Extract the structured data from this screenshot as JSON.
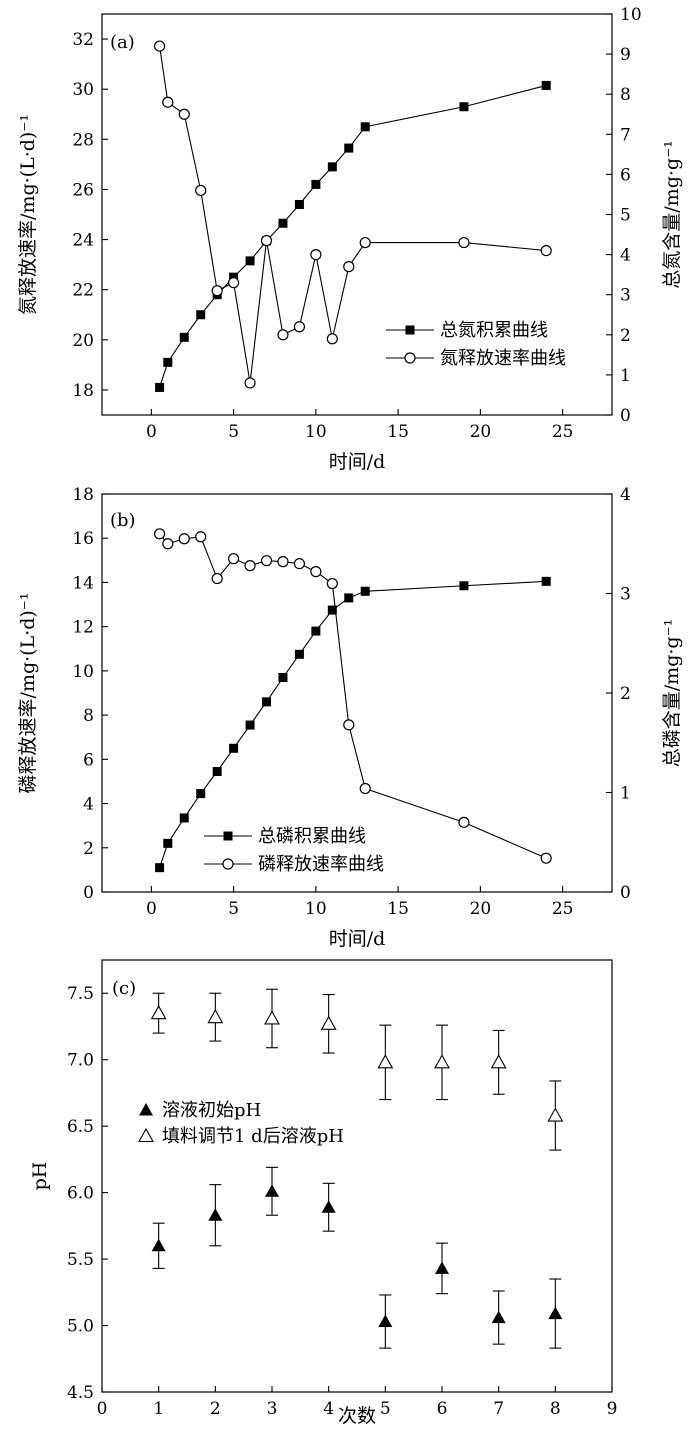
{
  "chart_data": [
    {
      "type": "line",
      "panel_label": "(a)",
      "xlabel": "时间/d",
      "ylabel_left": "氮释放速率/mg·(L·d)⁻¹",
      "ylabel_right": "总氮含量/mg·g⁻¹",
      "xlim": [
        -3,
        28
      ],
      "ylim_left": [
        17,
        33
      ],
      "ylim_right": [
        0,
        10
      ],
      "xticks": [
        "0",
        "5",
        "10",
        "15",
        "20",
        "25"
      ],
      "yticks_left": [
        "18",
        "20",
        "22",
        "24",
        "26",
        "28",
        "30",
        "32"
      ],
      "yticks_right": [
        "0",
        "1",
        "2",
        "3",
        "4",
        "5",
        "6",
        "7",
        "8",
        "9",
        "10"
      ],
      "legend_position": "center-right",
      "series": [
        {
          "name": "总氮积累曲线",
          "axis": "left",
          "marker": "filled-square",
          "x": [
            0.5,
            1,
            2,
            3,
            4,
            5,
            6,
            7,
            8,
            9,
            10,
            11,
            12,
            13,
            19,
            24
          ],
          "y": [
            18.1,
            19.1,
            20.1,
            21.0,
            21.8,
            22.5,
            23.15,
            23.95,
            24.65,
            25.4,
            26.2,
            26.9,
            27.65,
            28.5,
            29.3,
            30.15
          ]
        },
        {
          "name": "氮释放速率曲线",
          "axis": "right",
          "marker": "open-circle",
          "x": [
            0.5,
            1,
            2,
            3,
            4,
            5,
            6,
            7,
            8,
            9,
            10,
            11,
            12,
            13,
            19,
            24
          ],
          "y": [
            9.2,
            7.8,
            7.5,
            5.6,
            3.1,
            3.3,
            0.8,
            4.35,
            2.0,
            2.2,
            4.0,
            1.9,
            3.7,
            4.3,
            4.3,
            4.1
          ]
        }
      ]
    },
    {
      "type": "line",
      "panel_label": "(b)",
      "xlabel": "时间/d",
      "ylabel_left": "磷释放速率/mg·(L·d)⁻¹",
      "ylabel_right": "总磷含量/mg·g⁻¹",
      "xlim": [
        -3,
        28
      ],
      "ylim_left": [
        0,
        18
      ],
      "ylim_right": [
        0,
        4
      ],
      "xticks": [
        "0",
        "5",
        "10",
        "15",
        "20",
        "25"
      ],
      "yticks_left": [
        "0",
        "2",
        "4",
        "6",
        "8",
        "10",
        "12",
        "14",
        "16",
        "18"
      ],
      "yticks_right": [
        "0",
        "1",
        "2",
        "3",
        "4"
      ],
      "legend_position": "bottom-left",
      "series": [
        {
          "name": "总磷积累曲线",
          "axis": "left",
          "marker": "filled-square",
          "x": [
            0.5,
            1,
            2,
            3,
            4,
            5,
            6,
            7,
            8,
            9,
            10,
            11,
            12,
            13,
            19,
            24
          ],
          "y": [
            1.1,
            2.2,
            3.35,
            4.45,
            5.45,
            6.5,
            7.55,
            8.6,
            9.7,
            10.75,
            11.8,
            12.75,
            13.3,
            13.6,
            13.85,
            14.05
          ]
        },
        {
          "name": "磷释放速率曲线",
          "axis": "right",
          "marker": "open-circle",
          "x": [
            0.5,
            1,
            2,
            3,
            4,
            5,
            6,
            7,
            8,
            9,
            10,
            11,
            12,
            13,
            19,
            24
          ],
          "y": [
            3.6,
            3.5,
            3.55,
            3.57,
            3.15,
            3.35,
            3.28,
            3.33,
            3.32,
            3.3,
            3.22,
            3.1,
            1.68,
            1.04,
            0.7,
            0.34
          ]
        }
      ]
    },
    {
      "type": "scatter",
      "panel_label": "(c)",
      "xlabel": "次数",
      "ylabel": "pH",
      "xlim": [
        0,
        9
      ],
      "ylim": [
        4.5,
        7.75
      ],
      "xticks": [
        "0",
        "1",
        "2",
        "3",
        "4",
        "5",
        "6",
        "7",
        "8",
        "9"
      ],
      "yticks": [
        "4.5",
        "5.0",
        "5.5",
        "6.0",
        "6.5",
        "7.0",
        "7.5"
      ],
      "legend_position": "center-left",
      "series": [
        {
          "name": "溶液初始pH",
          "marker": "filled-triangle",
          "x": [
            1,
            2,
            3,
            4,
            5,
            6,
            7,
            8
          ],
          "y": [
            5.6,
            5.83,
            6.01,
            5.89,
            5.03,
            5.43,
            5.06,
            5.09
          ],
          "err_up": [
            0.17,
            0.23,
            0.18,
            0.18,
            0.2,
            0.19,
            0.2,
            0.26
          ],
          "err_down": [
            0.17,
            0.23,
            0.18,
            0.18,
            0.2,
            0.19,
            0.2,
            0.26
          ]
        },
        {
          "name": "填料调节1 d后溶液pH",
          "marker": "open-triangle",
          "x": [
            1,
            2,
            3,
            4,
            5,
            6,
            7,
            8
          ],
          "y": [
            7.35,
            7.32,
            7.31,
            7.27,
            6.98,
            6.98,
            6.98,
            6.58
          ],
          "err_up": [
            0.15,
            0.18,
            0.22,
            0.22,
            0.28,
            0.28,
            0.24,
            0.26
          ],
          "err_down": [
            0.15,
            0.18,
            0.22,
            0.22,
            0.28,
            0.28,
            0.24,
            0.26
          ]
        }
      ]
    }
  ]
}
